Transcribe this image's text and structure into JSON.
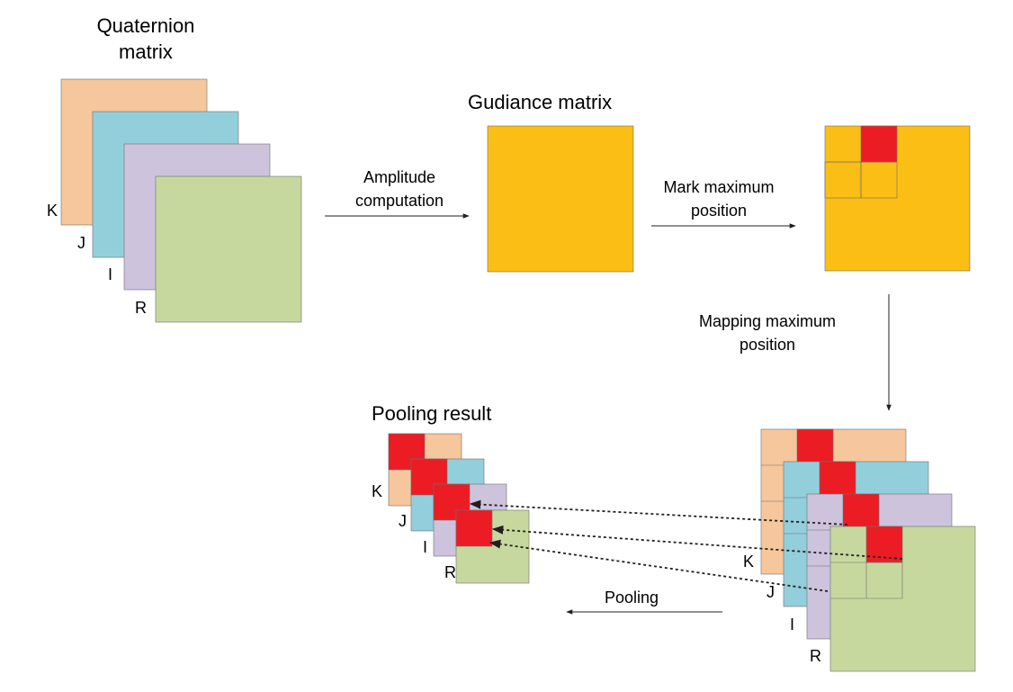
{
  "colors": {
    "K": "#f6c69d",
    "J": "#93cedb",
    "I": "#cdc3dc",
    "R": "#c6d89e",
    "guidance": "#fbbe14",
    "max": "#ec1c24",
    "line": "#231f20"
  },
  "titles": {
    "quaternion_line1": "Quaternion",
    "quaternion_line2": "matrix",
    "guidance": "Gudiance matrix",
    "pooling_result": "Pooling result"
  },
  "arrows": {
    "amplitude_line1": "Amplitude",
    "amplitude_line2": "computation",
    "mark_line1": "Mark maximum",
    "mark_line2": "position",
    "mapping_line1": "Mapping maximum",
    "mapping_line2": "position",
    "pooling": "Pooling"
  },
  "channels": {
    "k": "K",
    "j": "J",
    "i": "I",
    "r": "R"
  }
}
